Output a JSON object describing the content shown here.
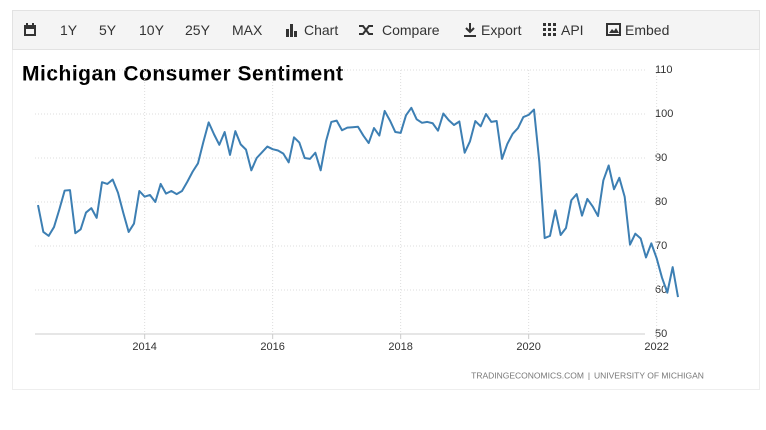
{
  "toolbar": {
    "items": [
      "1Y",
      "5Y",
      "10Y",
      "25Y",
      "MAX",
      "Chart",
      "Compare",
      "Export",
      "API",
      "Embed"
    ]
  },
  "chart_data": {
    "type": "line",
    "title": "Michigan Consumer Sentiment",
    "categories": [
      null,
      null,
      null,
      null,
      null,
      null,
      null,
      null,
      null,
      null,
      null,
      null,
      null,
      null,
      null,
      null,
      null,
      null,
      null,
      null,
      "2014",
      null,
      null,
      null,
      null,
      null,
      null,
      null,
      null,
      null,
      null,
      null,
      null,
      null,
      null,
      null,
      null,
      null,
      null,
      null,
      null,
      null,
      null,
      null,
      "2016",
      null,
      null,
      null,
      null,
      null,
      null,
      null,
      null,
      null,
      null,
      null,
      null,
      null,
      null,
      null,
      null,
      null,
      null,
      null,
      null,
      null,
      null,
      null,
      "2018",
      null,
      null,
      null,
      null,
      null,
      null,
      null,
      null,
      null,
      null,
      null,
      null,
      null,
      null,
      null,
      null,
      null,
      null,
      null,
      null,
      null,
      null,
      null,
      "2020",
      null,
      null,
      null,
      null,
      null,
      null,
      null,
      null,
      null,
      null,
      null,
      null,
      null,
      null,
      null,
      null,
      null,
      null,
      null,
      null,
      null,
      null,
      null,
      "2022",
      null,
      null,
      null,
      null
    ],
    "series": [
      {
        "name": "Michigan Consumer Sentiment",
        "color": "#3d7fb3",
        "values": [
          79.3,
          73.2,
          72.3,
          74.3,
          78.3,
          82.6,
          82.7,
          72.9,
          73.8,
          77.6,
          78.6,
          76.4,
          84.5,
          84.1,
          85.1,
          82.1,
          77.5,
          73.2,
          75.1,
          82.5,
          81.2,
          81.6,
          80.0,
          84.1,
          81.9,
          82.5,
          81.8,
          82.5,
          84.6,
          86.9,
          88.8,
          93.6,
          98.1,
          95.4,
          93.0,
          95.9,
          90.7,
          96.1,
          93.1,
          91.9,
          87.2,
          90.0,
          91.3,
          92.6,
          92.0,
          91.7,
          91.0,
          89.0,
          94.7,
          93.5,
          90.0,
          89.8,
          91.2,
          87.2,
          93.8,
          98.2,
          98.5,
          96.3,
          96.9,
          97.0,
          97.1,
          95.1,
          93.4,
          96.8,
          95.1,
          100.7,
          98.5,
          95.9,
          95.7,
          99.7,
          101.4,
          98.8,
          98.0,
          98.2,
          97.9,
          96.2,
          100.1,
          98.6,
          97.5,
          98.3,
          91.2,
          93.8,
          98.4,
          97.2,
          100.0,
          98.2,
          98.4,
          89.8,
          93.2,
          95.5,
          96.8,
          99.3,
          99.8,
          101.0,
          89.1,
          71.8,
          72.3,
          78.1,
          72.5,
          74.1,
          80.4,
          81.8,
          76.9,
          80.7,
          79.0,
          76.8,
          84.9,
          88.3,
          82.9,
          85.5,
          81.2,
          70.3,
          72.8,
          71.7,
          67.4,
          70.6,
          67.2,
          62.8,
          59.4,
          65.2,
          58.4
        ]
      }
    ],
    "ylim": [
      50,
      110
    ],
    "yticks": [
      50,
      60,
      70,
      80,
      90,
      100,
      110
    ],
    "grid": true,
    "source": [
      "TRADINGECONOMICS.COM",
      "UNIVERSITY OF MICHIGAN"
    ]
  }
}
